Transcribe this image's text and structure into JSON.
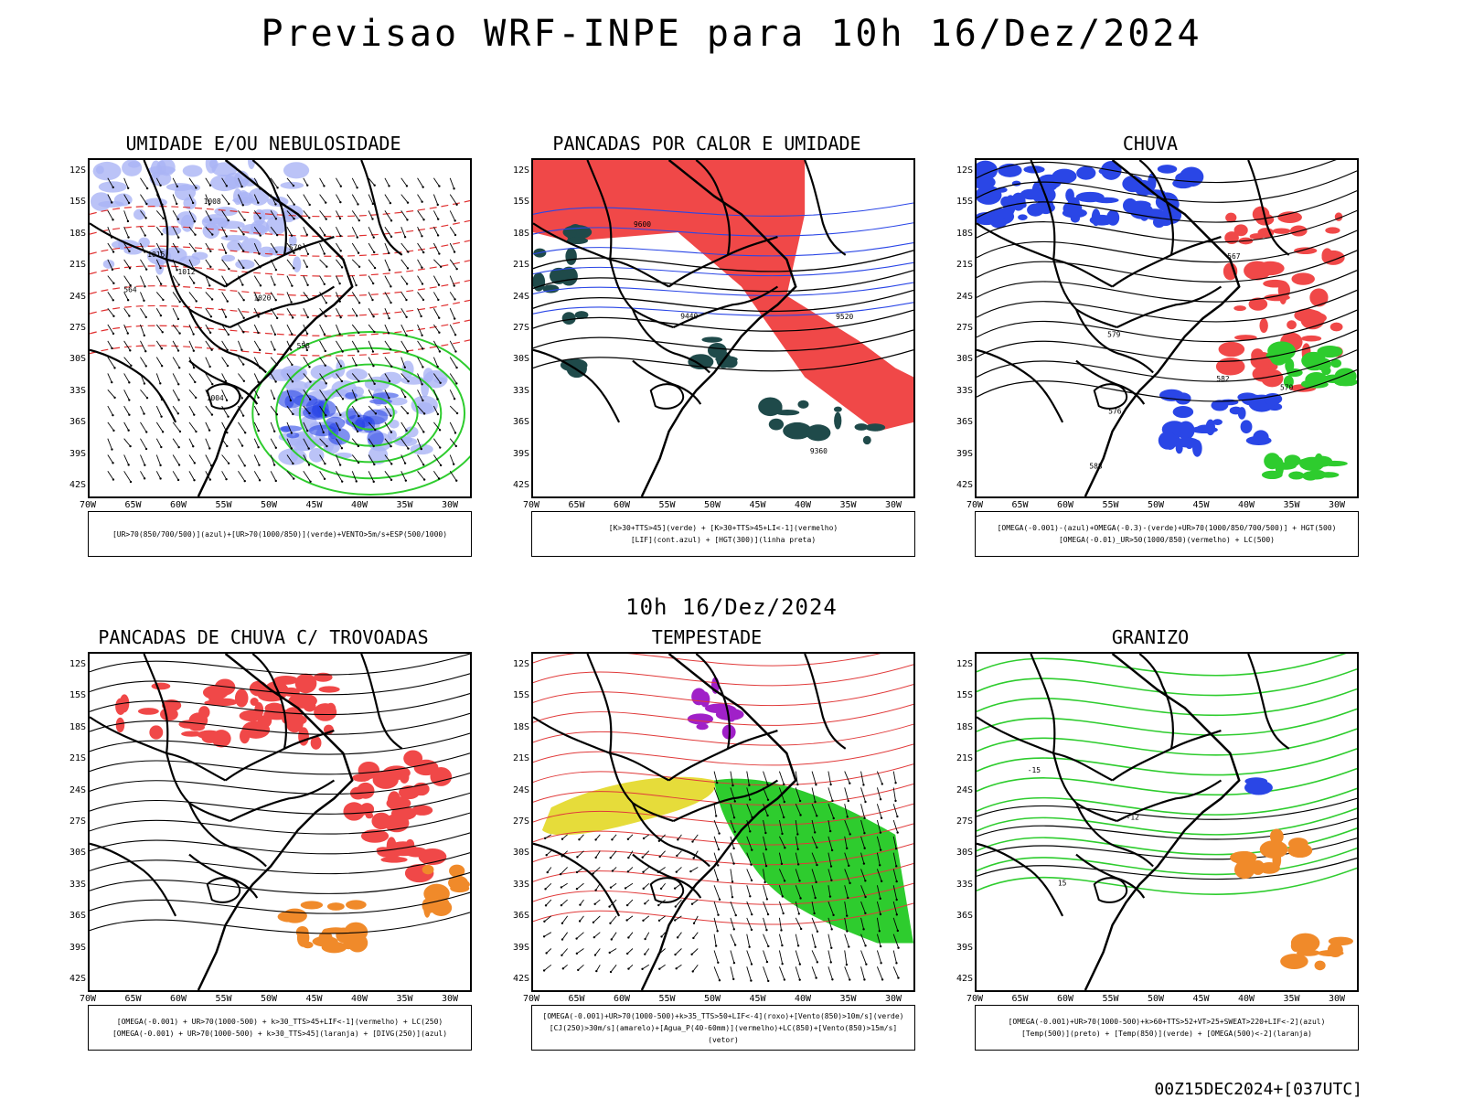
{
  "main_title": "Previsao WRF-INPE  para 10h 16/Dez/2024",
  "mid_title": "10h 16/Dez/2024",
  "footer_stamp": "00Z15DEC2024+[037UTC]",
  "lat_ticks": [
    "12S",
    "15S",
    "18S",
    "21S",
    "24S",
    "27S",
    "30S",
    "33S",
    "36S",
    "39S",
    "42S"
  ],
  "lon_ticks": [
    "70W",
    "65W",
    "60W",
    "55W",
    "50W",
    "45W",
    "40W",
    "35W",
    "30W"
  ],
  "colors": {
    "blue": "#2a46e6",
    "light_blue": "#aab4f5",
    "green": "#2ecc2e",
    "red": "#f04848",
    "dark_teal": "#1f4a4a",
    "yellow": "#e6dc3a",
    "orange": "#f08a2a",
    "purple": "#a020c8",
    "black": "#000000"
  },
  "panels": [
    {
      "title": "UMIDADE E/OU NEBULOSIDADE",
      "legend": [
        "[UR>70(850/700/500)](azul)+[UR>70(1000/850)](verde)+VENTO>5m/s+ESP(500/1000)"
      ],
      "contour_labels": [
        "1012",
        "1016",
        "1020",
        "1008",
        "1004",
        "570",
        "564",
        "558"
      ]
    },
    {
      "title": "PANCADAS POR CALOR E UMIDADE",
      "legend": [
        "[K>30+TTS>45](verde) + [K>30+TTS>45+LI<-1](vermelho)",
        "[LIF](cont.azul) + [HGT(300)](linha preta)"
      ],
      "contour_labels": [
        "9600",
        "9520",
        "9440",
        "9360"
      ]
    },
    {
      "title": "CHUVA",
      "legend": [
        "[OMEGA(-0.001)-(azul)+OMEGA(-0.3)-(verde)+UR>70(1000/850/700/500)] + HGT(500)",
        "[OMEGA(-0.01)_UR>50(1000/850)(vermelho) + LC(500)"
      ],
      "contour_labels": [
        "588",
        "582",
        "579",
        "576",
        "570",
        "567"
      ]
    },
    {
      "title": "PANCADAS DE CHUVA C/ TROVOADAS",
      "legend": [
        "[OMEGA(-0.001) + UR>70(1000-500) + k>30_TTS>45+LIF<-1](vermelho) + LC(250)",
        "[OMEGA(-0.001) + UR>70(1000-500) + k>30_TTS>45](laranja) + [DIVG(250)](azul)"
      ],
      "contour_labels": []
    },
    {
      "title": "TEMPESTADE",
      "legend": [
        "[OMEGA(-0.001)+UR>70(1000-500)+k>35_TTS>50+LIF<-4](roxo)+[Vento(850)>10m/s](verde)",
        "[CJ(250)>30m/s](amarelo)+[Agua_P(40-60mm)](vermelho)+LC(850)+[Vento(850)>15m/s](vetor)"
      ],
      "contour_labels": []
    },
    {
      "title": "GRANIZO",
      "legend": [
        "[OMEGA(-0.001)+UR>70(1000-500)+k>60+TTS>52+VT>25+SWEAT>220+LIF<-2](azul)",
        "[Temp(500)](preto) + [Temp(850)](verde) + [OMEGA(500)<-2](laranja)"
      ],
      "contour_labels": [
        "-12",
        "-15",
        "15"
      ]
    }
  ]
}
